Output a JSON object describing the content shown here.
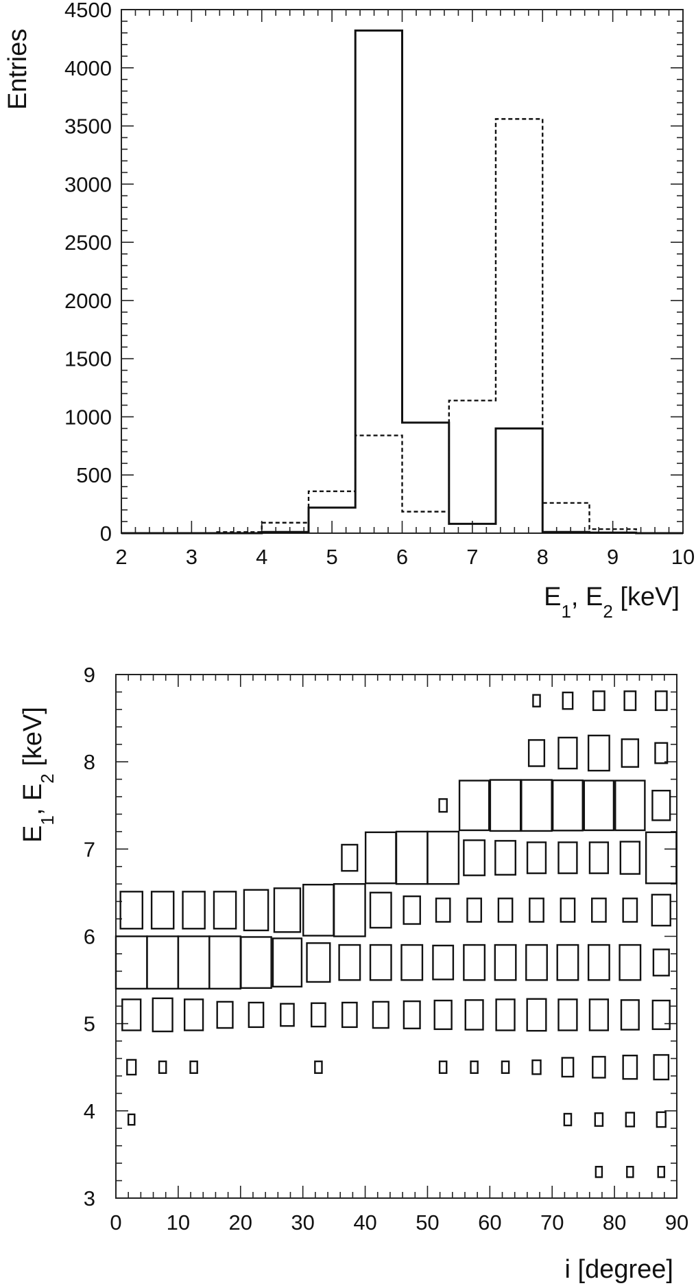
{
  "chart_data": [
    {
      "type": "histogram",
      "ylabel": "Entries",
      "xlabel": {
        "main": "E",
        "sub1": "1",
        "sep": ", E",
        "sub2": "2",
        "unit": " [keV]"
      },
      "xlim": [
        2,
        10
      ],
      "ylim": [
        0,
        4500
      ],
      "xticks": [
        2,
        3,
        4,
        5,
        6,
        7,
        8,
        9,
        10
      ],
      "yticks": [
        0,
        500,
        1000,
        1500,
        2000,
        2500,
        3000,
        3500,
        4000,
        4500
      ],
      "bin_edges": [
        2,
        2.667,
        3.333,
        4.0,
        4.667,
        5.333,
        6.0,
        6.667,
        7.333,
        8.0,
        8.667,
        9.333,
        10
      ],
      "series": [
        {
          "style": "solid",
          "values": [
            0,
            0,
            0,
            10,
            220,
            4320,
            950,
            80,
            900,
            10,
            5,
            0
          ]
        },
        {
          "style": "dashed",
          "values": [
            0,
            0,
            10,
            90,
            360,
            840,
            185,
            1140,
            3560,
            260,
            35,
            0
          ]
        }
      ]
    },
    {
      "type": "box2d",
      "ylabel": {
        "main": "E",
        "sub1": "1",
        "sep": ", E",
        "sub2": "2",
        "unit": " [keV]"
      },
      "xlabel": "i [degree]",
      "xlim": [
        0,
        90
      ],
      "ylim": [
        3,
        9
      ],
      "xticks": [
        0,
        10,
        20,
        30,
        40,
        50,
        60,
        70,
        80,
        90
      ],
      "yticks": [
        3,
        4,
        5,
        6,
        7,
        8,
        9
      ],
      "x_bin_width": 5,
      "y_bin_width": 0.6,
      "y_bin_centers": [
        3.9,
        4.5,
        5.1,
        5.7,
        6.3,
        6.9,
        7.5,
        8.1,
        8.7
      ],
      "cells": [
        [
          2.5,
          5.7,
          1.0
        ],
        [
          7.5,
          5.7,
          1.0
        ],
        [
          12.5,
          5.7,
          1.0
        ],
        [
          17.5,
          5.7,
          1.0
        ],
        [
          22.5,
          5.7,
          0.95
        ],
        [
          27.5,
          5.7,
          0.85
        ],
        [
          32.5,
          5.7,
          0.55
        ],
        [
          37.5,
          5.7,
          0.45
        ],
        [
          42.5,
          5.7,
          0.45
        ],
        [
          47.5,
          5.7,
          0.45
        ],
        [
          52.5,
          5.7,
          0.42
        ],
        [
          57.5,
          5.7,
          0.45
        ],
        [
          62.5,
          5.7,
          0.45
        ],
        [
          67.5,
          5.7,
          0.45
        ],
        [
          72.5,
          5.7,
          0.45
        ],
        [
          77.5,
          5.7,
          0.45
        ],
        [
          82.5,
          5.7,
          0.45
        ],
        [
          87.5,
          5.7,
          0.25
        ],
        [
          2.5,
          6.3,
          0.5
        ],
        [
          7.5,
          6.3,
          0.5
        ],
        [
          12.5,
          6.3,
          0.5
        ],
        [
          17.5,
          6.3,
          0.5
        ],
        [
          22.5,
          6.3,
          0.6
        ],
        [
          27.5,
          6.3,
          0.7
        ],
        [
          32.5,
          6.3,
          0.95
        ],
        [
          37.5,
          6.3,
          1.0
        ],
        [
          42.5,
          6.3,
          0.45
        ],
        [
          47.5,
          6.3,
          0.28
        ],
        [
          52.5,
          6.3,
          0.2
        ],
        [
          57.5,
          6.3,
          0.2
        ],
        [
          62.5,
          6.3,
          0.2
        ],
        [
          67.5,
          6.3,
          0.2
        ],
        [
          72.5,
          6.3,
          0.2
        ],
        [
          77.5,
          6.3,
          0.2
        ],
        [
          82.5,
          6.3,
          0.2
        ],
        [
          87.5,
          6.3,
          0.35
        ],
        [
          2.5,
          5.1,
          0.35
        ],
        [
          7.5,
          5.1,
          0.4
        ],
        [
          12.5,
          5.1,
          0.35
        ],
        [
          17.5,
          5.1,
          0.25
        ],
        [
          22.5,
          5.1,
          0.22
        ],
        [
          27.5,
          5.1,
          0.18
        ],
        [
          32.5,
          5.1,
          0.2
        ],
        [
          37.5,
          5.1,
          0.22
        ],
        [
          42.5,
          5.1,
          0.25
        ],
        [
          47.5,
          5.1,
          0.27
        ],
        [
          52.5,
          5.1,
          0.3
        ],
        [
          57.5,
          5.1,
          0.32
        ],
        [
          62.5,
          5.1,
          0.35
        ],
        [
          67.5,
          5.1,
          0.37
        ],
        [
          72.5,
          5.1,
          0.35
        ],
        [
          77.5,
          5.1,
          0.35
        ],
        [
          82.5,
          5.1,
          0.32
        ],
        [
          87.5,
          5.1,
          0.3
        ],
        [
          2.5,
          4.5,
          0.08
        ],
        [
          7.5,
          4.5,
          0.05
        ],
        [
          12.5,
          4.5,
          0.05
        ],
        [
          32.5,
          4.5,
          0.05
        ],
        [
          52.5,
          4.5,
          0.05
        ],
        [
          57.5,
          4.5,
          0.05
        ],
        [
          62.5,
          4.5,
          0.05
        ],
        [
          67.5,
          4.5,
          0.07
        ],
        [
          72.5,
          4.5,
          0.13
        ],
        [
          77.5,
          4.5,
          0.16
        ],
        [
          82.5,
          4.5,
          0.2
        ],
        [
          87.5,
          4.5,
          0.22
        ],
        [
          2.5,
          3.9,
          0.04
        ],
        [
          72.5,
          3.9,
          0.05
        ],
        [
          77.5,
          3.9,
          0.06
        ],
        [
          82.5,
          3.9,
          0.07
        ],
        [
          87.5,
          3.9,
          0.08
        ],
        [
          77.5,
          3.3,
          0.04
        ],
        [
          82.5,
          3.3,
          0.04
        ],
        [
          87.5,
          3.3,
          0.04
        ],
        [
          37.5,
          6.9,
          0.25
        ],
        [
          42.5,
          6.9,
          0.95
        ],
        [
          47.5,
          6.9,
          1.0
        ],
        [
          52.5,
          6.9,
          1.0
        ],
        [
          57.5,
          6.9,
          0.45
        ],
        [
          62.5,
          6.9,
          0.42
        ],
        [
          67.5,
          6.9,
          0.35
        ],
        [
          72.5,
          6.9,
          0.35
        ],
        [
          77.5,
          6.9,
          0.35
        ],
        [
          82.5,
          6.9,
          0.38
        ],
        [
          87.5,
          6.9,
          0.95
        ],
        [
          52.5,
          7.5,
          0.06
        ],
        [
          57.5,
          7.5,
          0.9
        ],
        [
          62.5,
          7.5,
          0.95
        ],
        [
          67.5,
          7.5,
          0.95
        ],
        [
          72.5,
          7.5,
          0.92
        ],
        [
          77.5,
          7.5,
          0.9
        ],
        [
          82.5,
          7.5,
          0.9
        ],
        [
          87.5,
          7.5,
          0.32
        ],
        [
          67.5,
          8.1,
          0.25
        ],
        [
          72.5,
          8.1,
          0.35
        ],
        [
          77.5,
          8.1,
          0.45
        ],
        [
          82.5,
          8.1,
          0.28
        ],
        [
          87.5,
          8.1,
          0.15
        ],
        [
          67.5,
          8.7,
          0.05
        ],
        [
          72.5,
          8.7,
          0.1
        ],
        [
          77.5,
          8.7,
          0.13
        ],
        [
          82.5,
          8.7,
          0.13
        ],
        [
          87.5,
          8.7,
          0.13
        ]
      ]
    }
  ]
}
